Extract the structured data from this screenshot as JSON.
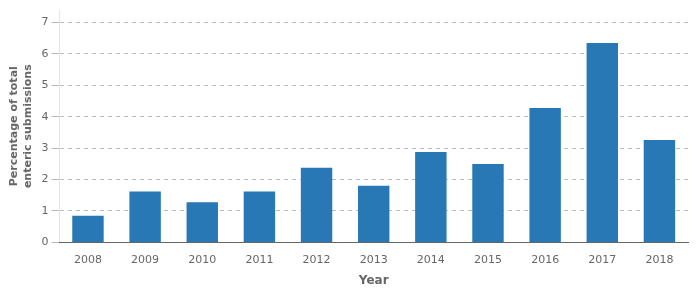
{
  "chart_data": {
    "type": "bar",
    "categories": [
      "2008",
      "2009",
      "2010",
      "2011",
      "2012",
      "2013",
      "2014",
      "2015",
      "2016",
      "2017",
      "2018"
    ],
    "values": [
      0.85,
      1.62,
      1.28,
      1.62,
      2.38,
      1.8,
      2.88,
      2.5,
      4.28,
      6.35,
      3.26
    ],
    "color": "#2878b5",
    "xlabel": "Year",
    "ylabel": "Percentage of total\nenteric submissions",
    "ylim": [
      0,
      7.4
    ],
    "yticks": [
      0,
      1,
      2,
      3,
      4,
      5,
      6,
      7
    ],
    "grid": true
  }
}
